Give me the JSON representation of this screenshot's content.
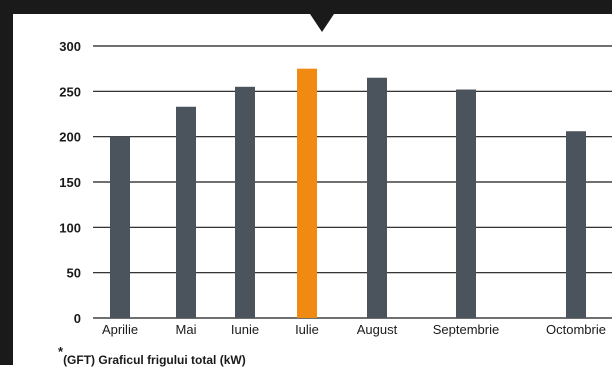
{
  "colors": {
    "frame": "#1a1a1a",
    "bar": "#4b545c",
    "highlight": "#f08a12",
    "grid": "#1a1a1a",
    "text": "#1a1a1a"
  },
  "chart_data": {
    "type": "bar",
    "categories": [
      "Aprilie",
      "Mai",
      "Iunie",
      "Iulie",
      "August",
      "Septembrie",
      "Octombrie"
    ],
    "values": [
      200,
      233,
      255,
      275,
      265,
      252,
      206
    ],
    "highlight_index": 3,
    "yticks": [
      0,
      50,
      100,
      150,
      200,
      250,
      300
    ],
    "ylim": [
      0,
      300
    ],
    "grid": true,
    "title": "",
    "xlabel": "",
    "ylabel": ""
  },
  "footnote": {
    "marker": "*",
    "text": "(GFT) Graficul frigului total (kW)"
  }
}
